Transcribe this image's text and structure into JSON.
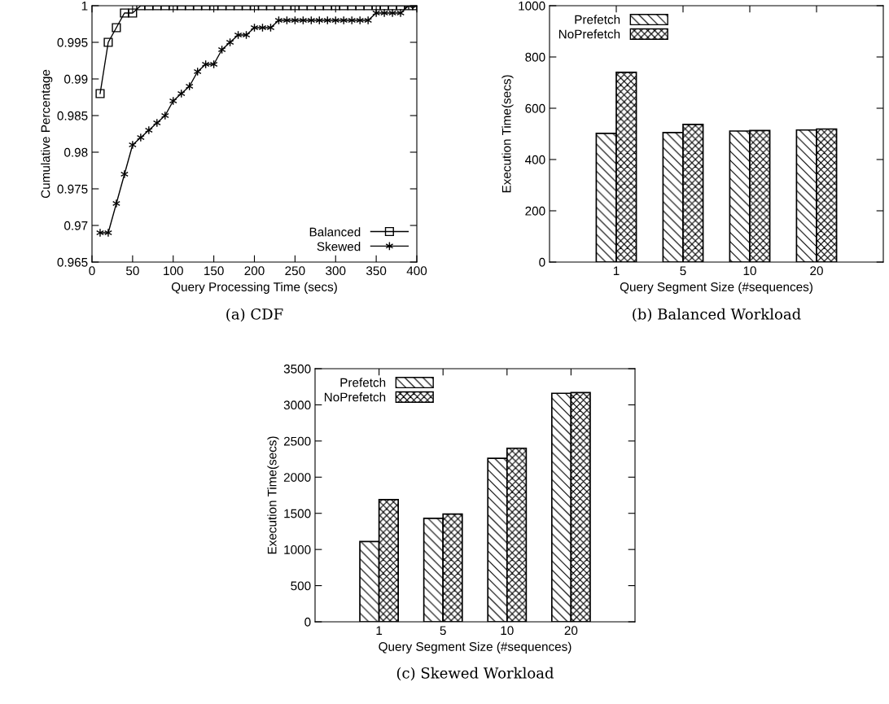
{
  "chart_data": [
    {
      "type": "line",
      "title": "(a) CDF",
      "xlabel": "Query Processing Time (secs)",
      "ylabel": "Cumulative Percentage",
      "x": [
        10,
        20,
        30,
        40,
        50,
        60,
        70,
        80,
        90,
        100,
        110,
        120,
        130,
        140,
        150,
        160,
        170,
        180,
        190,
        200,
        210,
        220,
        230,
        240,
        250,
        260,
        270,
        280,
        290,
        300,
        310,
        320,
        330,
        340,
        350,
        360,
        370,
        380,
        390,
        400
      ],
      "series": [
        {
          "name": "Balanced",
          "color": "#000000",
          "marker": "square",
          "values": [
            0.988,
            0.995,
            0.997,
            0.999,
            0.999,
            1,
            1,
            1,
            1,
            1,
            1,
            1,
            1,
            1,
            1,
            1,
            1,
            1,
            1,
            1,
            1,
            1,
            1,
            1,
            1,
            1,
            1,
            1,
            1,
            1,
            1,
            1,
            1,
            1,
            1,
            1,
            1,
            1,
            1,
            1
          ]
        },
        {
          "name": "Skewed",
          "color": "#000000",
          "marker": "cross",
          "values": [
            0.969,
            0.969,
            0.973,
            0.977,
            0.981,
            0.982,
            0.983,
            0.984,
            0.985,
            0.987,
            0.988,
            0.989,
            0.991,
            0.992,
            0.992,
            0.994,
            0.995,
            0.996,
            0.996,
            0.997,
            0.997,
            0.997,
            0.998,
            0.998,
            0.998,
            0.998,
            0.998,
            0.998,
            0.998,
            0.998,
            0.998,
            0.998,
            0.998,
            0.998,
            0.999,
            0.999,
            0.999,
            0.999,
            1,
            1
          ]
        }
      ],
      "xlim": [
        0,
        400
      ],
      "xticks": [
        0,
        50,
        100,
        150,
        200,
        250,
        300,
        350,
        400
      ],
      "ylim": [
        0.965,
        1
      ],
      "yticks": [
        0.965,
        0.97,
        0.975,
        0.98,
        0.985,
        0.99,
        0.995,
        1
      ],
      "legend": "bottom right",
      "grid": false,
      "line_style": "solid"
    },
    {
      "type": "bar",
      "title": "(b) Balanced Workload",
      "xlabel": "Query Segment Size (#sequences)",
      "ylabel": "Execution Time(secs)",
      "categories": [
        "1",
        "5",
        "10",
        "20"
      ],
      "series": [
        {
          "name": "Prefetch",
          "color": "#000000",
          "values": [
            502,
            505,
            511,
            515
          ]
        },
        {
          "name": "NoPrefetch",
          "color": "#000000",
          "values": [
            740,
            537,
            513,
            519
          ]
        }
      ],
      "ylim": [
        0,
        1000
      ],
      "yticks": [
        0,
        200,
        400,
        600,
        800,
        1000
      ],
      "legend": "top left",
      "grid": false
    },
    {
      "type": "bar",
      "title": "(c) Skewed Workload",
      "xlabel": "Query Segment Size (#sequences)",
      "ylabel": "Execution Time(secs)",
      "categories": [
        "1",
        "5",
        "10",
        "20"
      ],
      "series": [
        {
          "name": "Prefetch",
          "color": "#000000",
          "values": [
            1110,
            1430,
            2260,
            3160
          ]
        },
        {
          "name": "NoPrefetch",
          "color": "#000000",
          "values": [
            1690,
            1490,
            2400,
            3170
          ]
        }
      ],
      "ylim": [
        0,
        3500
      ],
      "yticks": [
        0,
        500,
        1000,
        1500,
        2000,
        2500,
        3000,
        3500
      ],
      "legend": "top left",
      "grid": false
    }
  ]
}
